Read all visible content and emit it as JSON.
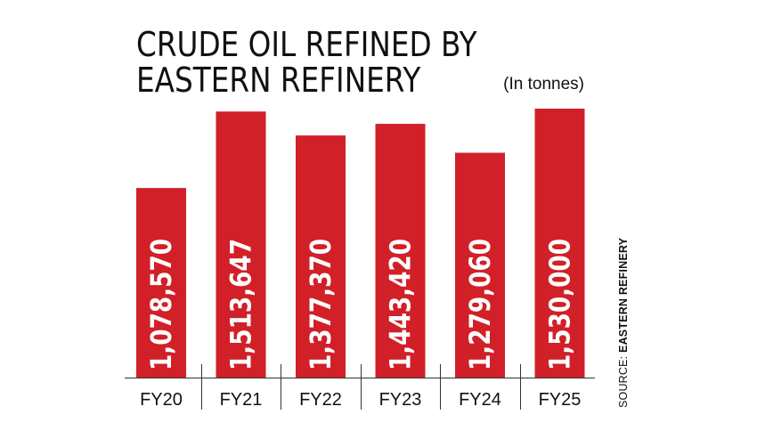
{
  "title_line1": "CRUDE OIL REFINED BY",
  "title_line2": "EASTERN REFINERY",
  "unit_label": "(In tonnes)",
  "source_prefix": "SOURCE: ",
  "source_name": "EASTERN REFINERY",
  "colors": {
    "bar": "#d12028",
    "bar_label": "#ffffff",
    "text": "#111111",
    "axis": "#333333"
  },
  "chart_data": {
    "type": "bar",
    "categories": [
      "FY20",
      "FY21",
      "FY22",
      "FY23",
      "FY24",
      "FY25"
    ],
    "values": [
      1078570,
      1513647,
      1377370,
      1443420,
      1279060,
      1530000
    ],
    "value_labels": [
      "1,078,570",
      "1,513,647",
      "1,377,370",
      "1,443,420",
      "1,279,060",
      "1,530,000"
    ],
    "title": "CRUDE OIL REFINED BY EASTERN REFINERY",
    "xlabel": "",
    "ylabel": "(In tonnes)",
    "grid": false,
    "legend": "none"
  }
}
